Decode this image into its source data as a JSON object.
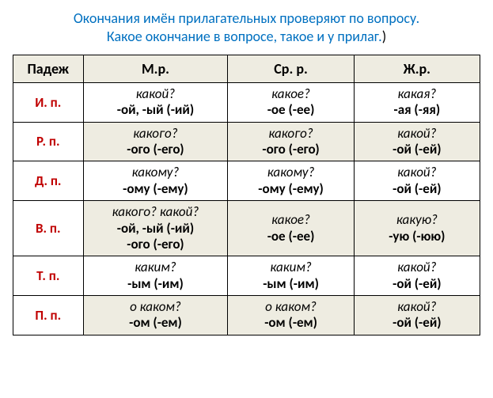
{
  "title": {
    "line1": "Окончания имён прилагательных проверяют по вопросу.",
    "line2": "Какое окончание в вопросе, такое и у прилаг.",
    "paren": ")"
  },
  "headers": {
    "case": "Падеж",
    "m": "М.р.",
    "n": "Ср. р.",
    "f": "Ж.р."
  },
  "rows": [
    {
      "case": "И. п.",
      "m": {
        "q": "какой?",
        "e": "-ой, -ый (-ий)"
      },
      "n": {
        "q": "какое?",
        "e": "-ое  (-ее)"
      },
      "f": {
        "q": "какая?",
        "e": "-ая  (-яя)"
      },
      "alt": false
    },
    {
      "case": "Р. п.",
      "m": {
        "q": "какого?",
        "e": "-ого  (-его)"
      },
      "n": {
        "q": "какого?",
        "e": "-ого  (-его)"
      },
      "f": {
        "q": "какой?",
        "e": "-ой  (-ей)"
      },
      "alt": true
    },
    {
      "case": "Д. п.",
      "m": {
        "q": "какому?",
        "e": "-ому  (-ему)"
      },
      "n": {
        "q": "какому?",
        "e": "-ому (-ему)"
      },
      "f": {
        "q": "какой?",
        "e": "-ой  (-ей)"
      },
      "alt": false
    },
    {
      "case": "В. п.",
      "m": {
        "q": "какого? какой?",
        "e": "-ой, -ый (-ий)",
        "e2": "-ого  (-его)"
      },
      "n": {
        "q": "какое?",
        "e": "-ое  (-ее)"
      },
      "f": {
        "q": "какую?",
        "e": "-ую  (-юю)"
      },
      "alt": true
    },
    {
      "case": "Т. п.",
      "m": {
        "q": "каким?",
        "e": "-ым (-им)"
      },
      "n": {
        "q": "каким?",
        "e": "-ым  (-им)"
      },
      "f": {
        "q": "какой?",
        "e": "-ой  (-ей)"
      },
      "alt": false
    },
    {
      "case": "П. п.",
      "m": {
        "q": "о каком?",
        "e": "-ом  (-ем)"
      },
      "n": {
        "q": "о каком?",
        "e": "-ом  (-ем)"
      },
      "f": {
        "q": "какой?",
        "e": "-ой  (-ей)"
      },
      "alt": true
    }
  ],
  "colors": {
    "title": "#0070c0",
    "case": "#c00000",
    "header_bg": "#eeece1",
    "alt_bg": "#eeece1",
    "border": "#000000",
    "text": "#000000"
  }
}
